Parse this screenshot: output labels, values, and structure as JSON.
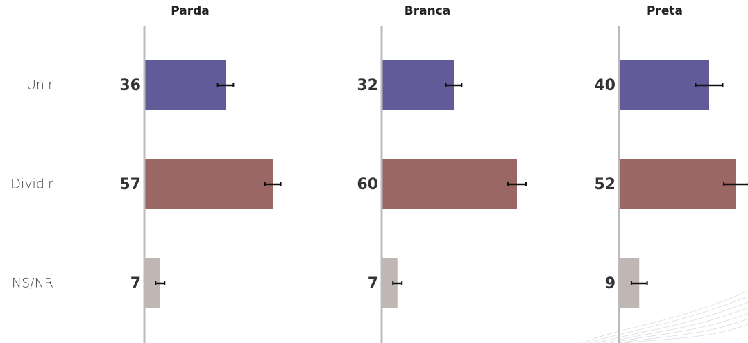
{
  "chart_data": {
    "type": "bar",
    "orientation": "horizontal",
    "categories": [
      "Unir",
      "Dividir",
      "NS/NR"
    ],
    "colors": [
      "#615c99",
      "#9a6764",
      "#c0b6b4"
    ],
    "xlim": [
      0,
      100
    ],
    "series": [
      {
        "name": "Parda",
        "values": [
          36,
          57,
          7
        ],
        "errors": [
          3.5,
          3.5,
          2
        ]
      },
      {
        "name": "Branca",
        "values": [
          32,
          60,
          7
        ],
        "errors": [
          3.5,
          4,
          2
        ]
      },
      {
        "name": "Preta",
        "values": [
          40,
          52,
          9
        ],
        "errors": [
          6,
          5.5,
          3.5
        ]
      }
    ]
  }
}
